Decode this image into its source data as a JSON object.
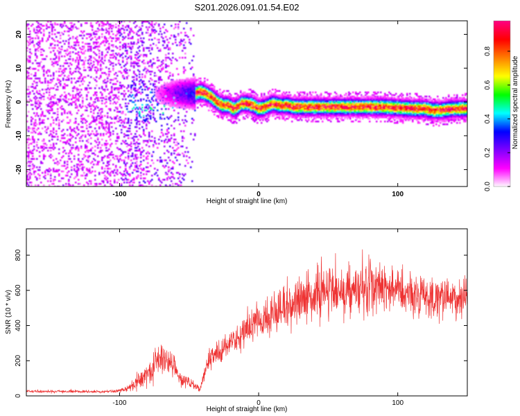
{
  "title": "S201.2026.091.01.54.E02",
  "chart_data": [
    {
      "type": "heatmap",
      "title": "S201.2026.091.01.54.E02",
      "xlabel": "Height of straight line (km)",
      "ylabel": "Frequency (Hz)",
      "xlim": [
        -167,
        150
      ],
      "ylim": [
        -25,
        24
      ],
      "x_ticks": [
        -100,
        0,
        100
      ],
      "y_ticks": [
        -20,
        -10,
        0,
        10,
        20
      ],
      "colorbar": {
        "label": "Normalized spectral amplitude",
        "range": [
          0,
          0.98
        ],
        "ticks": [
          0.0,
          0.2,
          0.4,
          0.6,
          0.8
        ],
        "colors": [
          "#ffffff",
          "#ff00ff",
          "#8000ff",
          "#0000ff",
          "#00ffff",
          "#00ff00",
          "#ffff00",
          "#ff8000",
          "#ff0000",
          "#ff0080"
        ]
      },
      "ridge": {
        "x": [
          -45,
          -42,
          -38,
          -34,
          -30,
          -26,
          -22,
          -18,
          -15,
          -12,
          -8,
          -4,
          0,
          5,
          10,
          15,
          20,
          25,
          35,
          50,
          70,
          90,
          110,
          120,
          125,
          130,
          140,
          150
        ],
        "y": [
          2.5,
          3.0,
          2.5,
          1.5,
          0.0,
          -1.0,
          -1.0,
          -2.0,
          -1.5,
          -0.5,
          -0.5,
          -1.0,
          -2.0,
          -1.5,
          -0.5,
          -1.0,
          -1.0,
          -1.5,
          -1.5,
          -1.5,
          -1.5,
          -1.5,
          -2.0,
          -2.0,
          -2.5,
          -2.5,
          -2.0,
          -2.0
        ]
      }
    },
    {
      "type": "line",
      "xlabel": "Height of straight line (km)",
      "ylabel": "SNR (10 * v/v)",
      "xlim": [
        -167,
        150
      ],
      "ylim": [
        0,
        950
      ],
      "x_ticks": [
        -100,
        0,
        100
      ],
      "y_ticks": [
        0,
        200,
        400,
        600,
        800
      ],
      "series": [
        {
          "name": "SNR",
          "color": "#ee3333",
          "x": [
            -167,
            -150,
            -130,
            -110,
            -100,
            -95,
            -90,
            -85,
            -80,
            -75,
            -70,
            -67,
            -64,
            -60,
            -55,
            -50,
            -45,
            -42,
            -38,
            -34,
            -30,
            -20,
            -10,
            0,
            10,
            20,
            30,
            40,
            50,
            60,
            70,
            80,
            90,
            100,
            110,
            120,
            130,
            140,
            150
          ],
          "y": [
            25,
            25,
            25,
            25,
            28,
            40,
            65,
            85,
            120,
            175,
            195,
            205,
            185,
            140,
            90,
            75,
            50,
            40,
            150,
            210,
            250,
            300,
            370,
            420,
            460,
            500,
            540,
            570,
            590,
            605,
            615,
            620,
            620,
            610,
            590,
            560,
            540,
            545,
            560
          ],
          "noise": [
            8,
            8,
            8,
            8,
            10,
            15,
            30,
            45,
            60,
            80,
            80,
            80,
            70,
            55,
            40,
            30,
            20,
            15,
            50,
            60,
            65,
            70,
            80,
            90,
            100,
            110,
            120,
            130,
            135,
            140,
            140,
            140,
            140,
            140,
            135,
            130,
            120,
            100,
            90
          ]
        }
      ]
    }
  ]
}
